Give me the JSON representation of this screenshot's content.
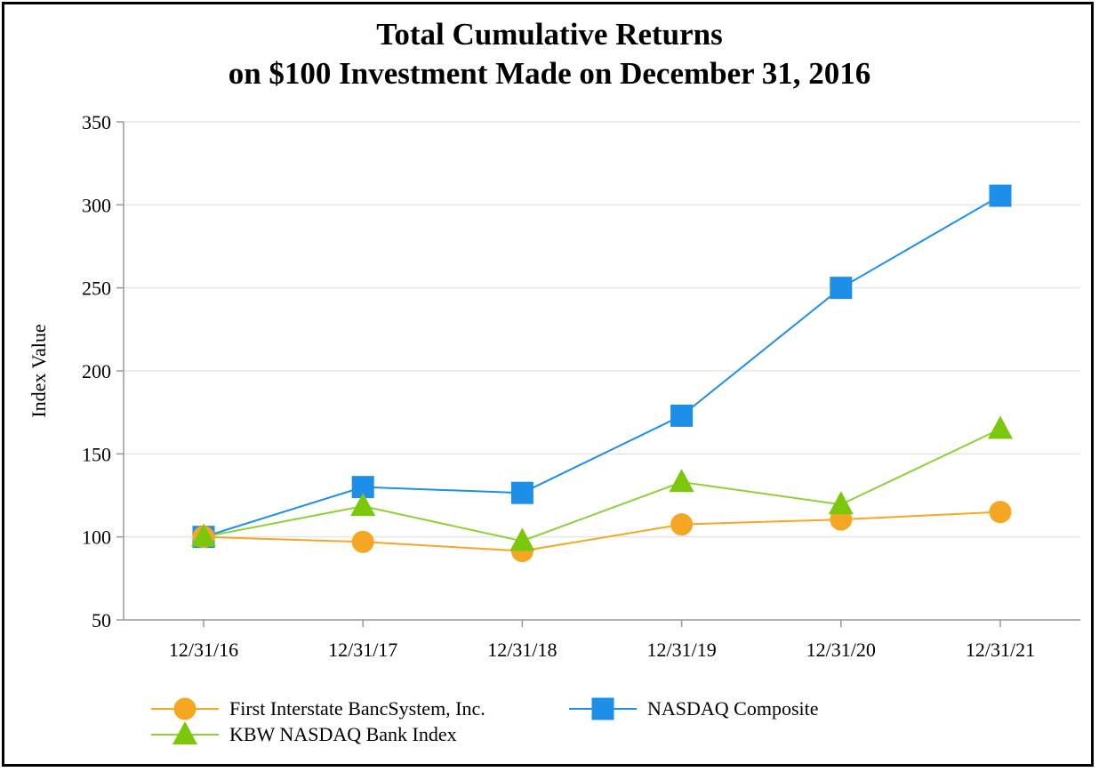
{
  "chart_data": {
    "type": "line",
    "title_line1": "Total Cumulative Returns",
    "title_line2": "on $100 Investment Made on December 31, 2016",
    "xlabel": "",
    "ylabel": "Index Value",
    "ylim": [
      50,
      350
    ],
    "yticks": [
      50,
      100,
      150,
      200,
      250,
      300,
      350
    ],
    "grid": true,
    "legend_position": "bottom",
    "categories": [
      "12/31/16",
      "12/31/17",
      "12/31/18",
      "12/31/19",
      "12/31/20",
      "12/31/21"
    ],
    "series": [
      {
        "name": "First Interstate BancSystem, Inc.",
        "marker": "circle",
        "color": "#F5A623",
        "values": [
          100.0,
          97.0,
          91.5,
          107.5,
          110.5,
          115.0
        ]
      },
      {
        "name": "NASDAQ Composite",
        "marker": "square",
        "color": "#1E8FE8",
        "values": [
          100.0,
          130.0,
          126.5,
          173.0,
          250.0,
          305.5
        ]
      },
      {
        "name": "KBW NASDAQ Bank Index",
        "marker": "triangle",
        "color": "#7AC70C",
        "values": [
          100.0,
          118.5,
          97.5,
          133.0,
          119.5,
          165.0
        ]
      }
    ]
  },
  "colors": {
    "circle_line": "#F5A623",
    "square_line": "#1E8FE8",
    "triangle_line": "#8CD23A",
    "triangle_fill": "#7AC70C",
    "grid": "#E6E6E6",
    "axis": "#999999"
  }
}
